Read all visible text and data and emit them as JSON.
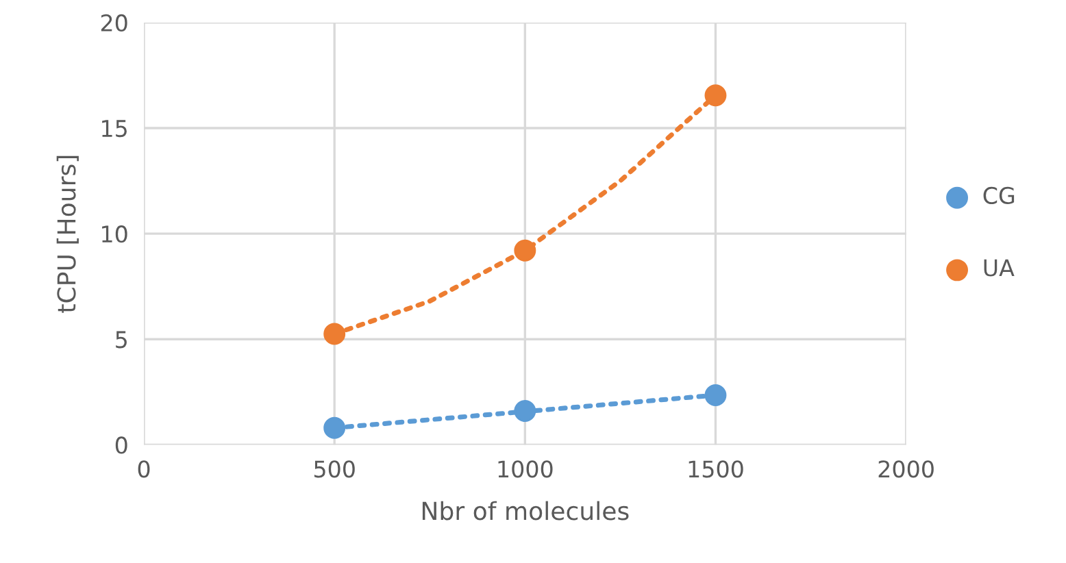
{
  "chart_data": {
    "type": "scatter",
    "xlabel": "Nbr of molecules",
    "ylabel": "tCPU [Hours]",
    "xlim": [
      0,
      2000
    ],
    "xticks": [
      0,
      500,
      1000,
      1500,
      2000
    ],
    "ylim": [
      0,
      20
    ],
    "yticks": [
      0,
      5,
      10,
      15,
      20
    ],
    "grid": true,
    "legend": "right",
    "marker": "circle",
    "series": [
      {
        "name": "CG",
        "color": "#5b9bd5",
        "x": [
          500,
          1000,
          1500
        ],
        "values": [
          0.8,
          1.6,
          2.35
        ]
      },
      {
        "name": "UA",
        "color": "#ed7d31",
        "x": [
          500,
          1000,
          1500
        ],
        "values": [
          5.25,
          9.2,
          16.55
        ]
      },
      {
        "type": "line",
        "color": "#5b9bd5",
        "line_style": "dotted",
        "marker": "none",
        "x": [
          500,
          1500
        ],
        "values": [
          0.8,
          2.35
        ]
      },
      {
        "type": "line",
        "color": "#ed7d31",
        "line_style": "dotted",
        "marker": "none",
        "x": [
          500,
          750,
          1000,
          1250,
          1500
        ],
        "values": [
          5.25,
          6.8,
          9.2,
          12.5,
          16.55
        ]
      }
    ]
  }
}
